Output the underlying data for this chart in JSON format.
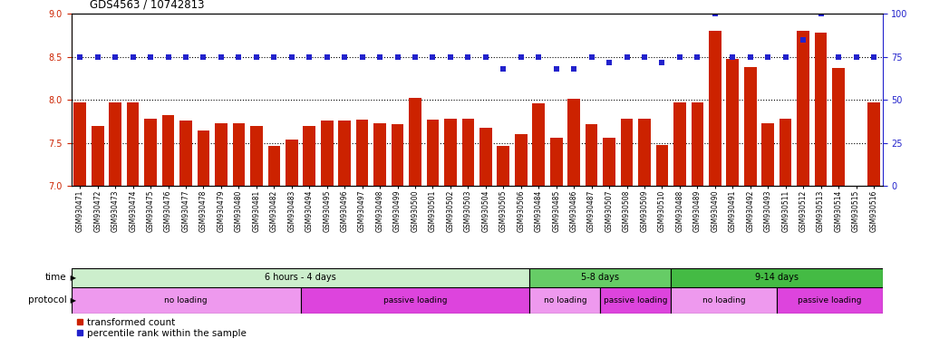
{
  "title": "GDS4563 / 10742813",
  "samples": [
    "GSM930471",
    "GSM930472",
    "GSM930473",
    "GSM930474",
    "GSM930475",
    "GSM930476",
    "GSM930477",
    "GSM930478",
    "GSM930479",
    "GSM930480",
    "GSM930481",
    "GSM930482",
    "GSM930483",
    "GSM930494",
    "GSM930495",
    "GSM930496",
    "GSM930497",
    "GSM930498",
    "GSM930499",
    "GSM930500",
    "GSM930501",
    "GSM930502",
    "GSM930503",
    "GSM930504",
    "GSM930505",
    "GSM930506",
    "GSM930484",
    "GSM930485",
    "GSM930486",
    "GSM930487",
    "GSM930507",
    "GSM930508",
    "GSM930509",
    "GSM930510",
    "GSM930488",
    "GSM930489",
    "GSM930490",
    "GSM930491",
    "GSM930492",
    "GSM930493",
    "GSM930511",
    "GSM930512",
    "GSM930513",
    "GSM930514",
    "GSM930515",
    "GSM930516"
  ],
  "transformed_count": [
    7.97,
    7.7,
    7.97,
    7.97,
    7.78,
    7.83,
    7.76,
    7.65,
    7.73,
    7.73,
    7.7,
    7.47,
    7.54,
    7.7,
    7.76,
    7.76,
    7.77,
    7.73,
    7.72,
    8.02,
    7.77,
    7.78,
    7.78,
    7.68,
    7.47,
    7.6,
    7.96,
    7.56,
    8.01,
    7.72,
    7.56,
    7.78,
    7.78,
    7.48,
    7.97,
    7.97,
    8.8,
    8.48,
    8.38,
    7.73,
    7.78,
    8.8,
    8.78,
    8.37,
    6.92,
    7.97
  ],
  "percentile_rank": [
    75,
    75,
    75,
    75,
    75,
    75,
    75,
    75,
    75,
    75,
    75,
    75,
    75,
    75,
    75,
    75,
    75,
    75,
    75,
    75,
    75,
    75,
    75,
    75,
    68,
    75,
    75,
    68,
    68,
    75,
    72,
    75,
    75,
    72,
    75,
    75,
    100,
    75,
    75,
    75,
    75,
    85,
    100,
    75,
    75,
    75
  ],
  "ylim_left": [
    7.0,
    9.0
  ],
  "ylim_right": [
    0,
    100
  ],
  "yticks_left": [
    7.0,
    7.5,
    8.0,
    8.5,
    9.0
  ],
  "yticks_right": [
    0,
    25,
    50,
    75,
    100
  ],
  "bar_color": "#cc2200",
  "dot_color": "#2222cc",
  "time_bands": [
    {
      "label": "6 hours - 4 days",
      "start": 0,
      "end": 26,
      "color": "#cceecc"
    },
    {
      "label": "5-8 days",
      "start": 26,
      "end": 34,
      "color": "#66cc66"
    },
    {
      "label": "9-14 days",
      "start": 34,
      "end": 46,
      "color": "#44bb44"
    }
  ],
  "protocol_bands": [
    {
      "label": "no loading",
      "start": 0,
      "end": 13,
      "color": "#ee99ee"
    },
    {
      "label": "passive loading",
      "start": 13,
      "end": 26,
      "color": "#dd44dd"
    },
    {
      "label": "no loading",
      "start": 26,
      "end": 30,
      "color": "#ee99ee"
    },
    {
      "label": "passive loading",
      "start": 30,
      "end": 34,
      "color": "#dd44dd"
    },
    {
      "label": "no loading",
      "start": 34,
      "end": 40,
      "color": "#ee99ee"
    },
    {
      "label": "passive loading",
      "start": 40,
      "end": 46,
      "color": "#dd44dd"
    }
  ],
  "legend_items": [
    {
      "label": "transformed count",
      "color": "#cc2200"
    },
    {
      "label": "percentile rank within the sample",
      "color": "#2222cc"
    }
  ]
}
